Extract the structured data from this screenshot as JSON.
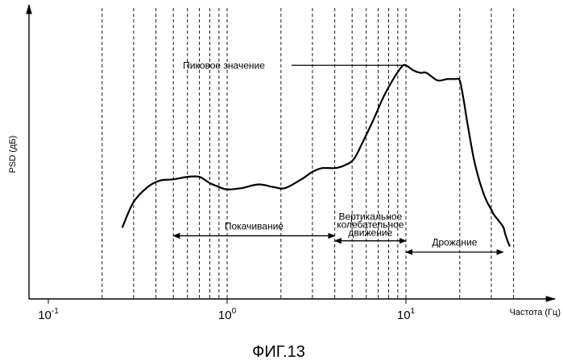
{
  "chart_data": {
    "type": "line",
    "title": "",
    "xlabel": "Частота (Гц)",
    "ylabel": "PSD (дБ)",
    "x_scale": "log",
    "xlim": [
      0.07,
      40
    ],
    "grid": "vertical-dashed",
    "x_ticks": [
      {
        "value": 0.1,
        "base": "10",
        "exp": "-1"
      },
      {
        "value": 1,
        "base": "10",
        "exp": "0"
      },
      {
        "value": 10,
        "base": "10",
        "exp": "1"
      }
    ],
    "gridlines": [
      0.2,
      0.3,
      0.4,
      0.5,
      0.6,
      0.7,
      0.8,
      0.9,
      1,
      2,
      3,
      4,
      5,
      6,
      7,
      8,
      9,
      10,
      20,
      30,
      40
    ],
    "series": [
      {
        "name": "",
        "points": [
          [
            0.26,
            8
          ],
          [
            0.3,
            28
          ],
          [
            0.36,
            40
          ],
          [
            0.42,
            45
          ],
          [
            0.5,
            46
          ],
          [
            0.6,
            48
          ],
          [
            0.7,
            48
          ],
          [
            0.8,
            43
          ],
          [
            0.9,
            40
          ],
          [
            1.0,
            38
          ],
          [
            1.2,
            39
          ],
          [
            1.5,
            42
          ],
          [
            1.8,
            40
          ],
          [
            2.1,
            39
          ],
          [
            2.6,
            46
          ],
          [
            3.0,
            52
          ],
          [
            3.4,
            55
          ],
          [
            4.0,
            55
          ],
          [
            4.5,
            57
          ],
          [
            5.1,
            62
          ],
          [
            5.7,
            75
          ],
          [
            6.5,
            92
          ],
          [
            7.5,
            112
          ],
          [
            8.5,
            126
          ],
          [
            9.5,
            136
          ],
          [
            10.0,
            137
          ],
          [
            11,
            133
          ],
          [
            12,
            131
          ],
          [
            13,
            131
          ],
          [
            15,
            125
          ],
          [
            17,
            126
          ],
          [
            19,
            126
          ],
          [
            20,
            125
          ],
          [
            21,
            110
          ],
          [
            22,
            92
          ],
          [
            24,
            62
          ],
          [
            26,
            43
          ],
          [
            28,
            30
          ],
          [
            30,
            22
          ],
          [
            31,
            18
          ],
          [
            33,
            13
          ],
          [
            35,
            8
          ],
          [
            36,
            2
          ],
          [
            37,
            -3
          ],
          [
            38,
            -7
          ]
        ]
      }
    ],
    "annotations": {
      "peak": {
        "text": "Пиковое значение",
        "x": 10,
        "y": 137
      },
      "ranges": [
        {
          "text": "Покачивание",
          "x0": 0.5,
          "x1": 4,
          "y": 1
        },
        {
          "text": "Вертикальное колебательное движение",
          "x0": 4,
          "x1": 10,
          "y": -3
        },
        {
          "text": "Дрожание",
          "x0": 10,
          "x1": 35,
          "y": -12
        }
      ]
    },
    "caption": "ФИГ.13"
  }
}
